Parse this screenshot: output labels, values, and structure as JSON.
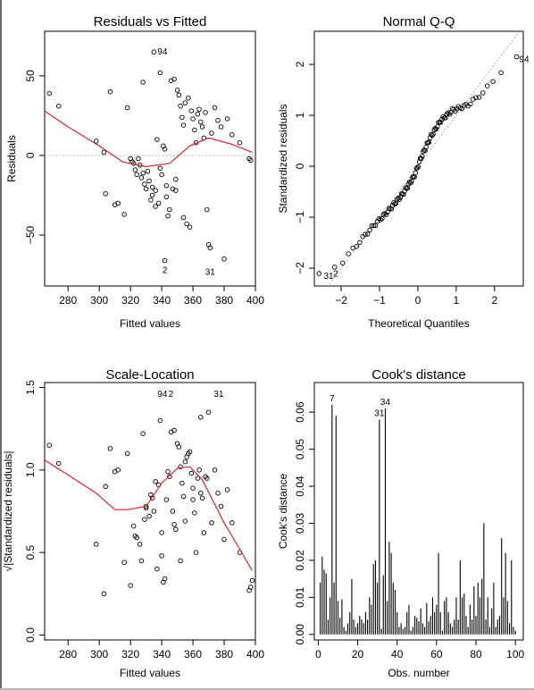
{
  "colors": {
    "smooth": "#d62728",
    "reference": "#9a9a9a",
    "ink": "#000000"
  },
  "chart_data": [
    {
      "type": "scatter",
      "title": "Residuals vs Fitted",
      "xlabel": "Fitted values",
      "ylabel": "Residuals",
      "xlim": [
        265,
        400
      ],
      "ylim": [
        -82,
        78
      ],
      "xticks": [
        280,
        300,
        320,
        340,
        360,
        380,
        400
      ],
      "yticks": [
        -50,
        0,
        50
      ],
      "reference_line": {
        "type": "horizontal",
        "y": 0,
        "style": "dotted"
      },
      "points": [
        [
          268,
          39
        ],
        [
          274,
          31
        ],
        [
          298,
          9
        ],
        [
          303,
          2
        ],
        [
          304,
          -24
        ],
        [
          307,
          40
        ],
        [
          310,
          -31
        ],
        [
          312,
          -30
        ],
        [
          316,
          -37
        ],
        [
          318,
          30
        ],
        [
          320,
          -2
        ],
        [
          322,
          -5
        ],
        [
          323,
          -9
        ],
        [
          324,
          -12
        ],
        [
          326,
          -6
        ],
        [
          327,
          -14
        ],
        [
          328,
          46
        ],
        [
          329,
          -18
        ],
        [
          330,
          -21
        ],
        [
          332,
          -16
        ],
        [
          333,
          -28
        ],
        [
          334,
          -25
        ],
        [
          335,
          65
        ],
        [
          336,
          -32
        ],
        [
          337,
          10
        ],
        [
          338,
          -30
        ],
        [
          339,
          52
        ],
        [
          340,
          -12
        ],
        [
          341,
          6
        ],
        [
          342,
          4
        ],
        [
          343,
          -26
        ],
        [
          344,
          -38
        ],
        [
          345,
          -34
        ],
        [
          346,
          47
        ],
        [
          347,
          -21
        ],
        [
          348,
          48
        ],
        [
          349,
          -15
        ],
        [
          350,
          41
        ],
        [
          351,
          38
        ],
        [
          352,
          31
        ],
        [
          353,
          24
        ],
        [
          354,
          19
        ],
        [
          355,
          33
        ],
        [
          356,
          -43
        ],
        [
          357,
          36
        ],
        [
          358,
          -45
        ],
        [
          359,
          28
        ],
        [
          360,
          23
        ],
        [
          361,
          16
        ],
        [
          362,
          8
        ],
        [
          363,
          26
        ],
        [
          364,
          29
        ],
        [
          365,
          21
        ],
        [
          366,
          18
        ],
        [
          367,
          11
        ],
        [
          368,
          27
        ],
        [
          369,
          -34
        ],
        [
          370,
          -56
        ],
        [
          372,
          14
        ],
        [
          374,
          30
        ],
        [
          376,
          22
        ],
        [
          378,
          18
        ],
        [
          380,
          -65
        ],
        [
          382,
          23
        ],
        [
          385,
          13
        ],
        [
          390,
          8
        ],
        [
          396,
          -2
        ],
        [
          397,
          -3
        ],
        [
          334,
          -20
        ],
        [
          331,
          -10
        ],
        [
          325,
          -2
        ],
        [
          339,
          -8
        ],
        [
          343,
          -19
        ],
        [
          349,
          -22
        ],
        [
          336,
          -22
        ],
        [
          328,
          -11
        ],
        [
          321,
          -4
        ],
        [
          342,
          -66
        ],
        [
          371,
          -58
        ],
        [
          354,
          -39
        ]
      ],
      "smooth": [
        [
          265,
          28
        ],
        [
          280,
          18
        ],
        [
          300,
          6
        ],
        [
          315,
          -4
        ],
        [
          330,
          -7
        ],
        [
          345,
          -5
        ],
        [
          358,
          6
        ],
        [
          370,
          11
        ],
        [
          385,
          7
        ],
        [
          398,
          2
        ]
      ],
      "annotations": [
        {
          "label": "94",
          "x": 335,
          "y": 65
        },
        {
          "label": "2",
          "x": 342,
          "y": -66
        },
        {
          "label": "31",
          "x": 371,
          "y": -67
        }
      ]
    },
    {
      "type": "scatter",
      "title": "Normal Q-Q",
      "xlabel": "Theoretical Quantiles",
      "ylabel": "Standardized residuals",
      "xlim": [
        -2.7,
        2.75
      ],
      "ylim": [
        -2.35,
        2.65
      ],
      "xticks": [
        -2,
        -1,
        0,
        1,
        2
      ],
      "yticks": [
        -2,
        -1,
        0,
        1,
        2
      ],
      "reference_line": {
        "type": "diagonal",
        "slope": 1,
        "intercept": 0,
        "style": "dotted"
      },
      "n_points": 100,
      "sample_curve": [
        [
          -2.6,
          -2.15
        ],
        [
          -2.0,
          -1.9
        ],
        [
          -1.6,
          -1.55
        ],
        [
          -1.2,
          -1.2
        ],
        [
          -0.8,
          -0.9
        ],
        [
          -0.4,
          -0.55
        ],
        [
          -0.1,
          -0.2
        ],
        [
          0.1,
          0.2
        ],
        [
          0.35,
          0.6
        ],
        [
          0.6,
          0.9
        ],
        [
          0.9,
          1.1
        ],
        [
          1.3,
          1.2
        ],
        [
          1.7,
          1.45
        ],
        [
          2.0,
          1.7
        ],
        [
          2.3,
          2.0
        ],
        [
          2.6,
          2.15
        ]
      ],
      "annotations": [
        {
          "label": "94",
          "x": 2.55,
          "y": 2.1
        },
        {
          "label": "31",
          "x": -2.55,
          "y": -2.16
        },
        {
          "label": "2",
          "x": -2.3,
          "y": -2.11
        }
      ]
    },
    {
      "type": "scatter",
      "title": "Scale-Location",
      "xlabel": "Fitted values",
      "ylabel": "√|Standardized residuals|",
      "xlim": [
        265,
        400
      ],
      "ylim": [
        -0.03,
        1.53
      ],
      "xticks": [
        280,
        300,
        320,
        340,
        360,
        380,
        400
      ],
      "yticks": [
        0.0,
        0.5,
        1.0,
        1.5
      ],
      "points": [
        [
          268,
          1.15
        ],
        [
          274,
          1.04
        ],
        [
          298,
          0.55
        ],
        [
          303,
          0.25
        ],
        [
          304,
          0.9
        ],
        [
          307,
          1.13
        ],
        [
          310,
          0.99
        ],
        [
          312,
          1.0
        ],
        [
          316,
          0.44
        ],
        [
          318,
          1.1
        ],
        [
          320,
          0.3
        ],
        [
          322,
          0.66
        ],
        [
          323,
          0.6
        ],
        [
          324,
          0.59
        ],
        [
          326,
          0.55
        ],
        [
          327,
          0.45
        ],
        [
          328,
          1.22
        ],
        [
          329,
          0.7
        ],
        [
          330,
          0.77
        ],
        [
          332,
          0.72
        ],
        [
          333,
          0.85
        ],
        [
          334,
          0.83
        ],
        [
          336,
          0.93
        ],
        [
          337,
          0.4
        ],
        [
          338,
          0.91
        ],
        [
          339,
          1.3
        ],
        [
          340,
          0.62
        ],
        [
          341,
          0.32
        ],
        [
          342,
          0.34
        ],
        [
          343,
          0.82
        ],
        [
          344,
          0.99
        ],
        [
          345,
          0.96
        ],
        [
          346,
          1.23
        ],
        [
          347,
          0.75
        ],
        [
          348,
          1.24
        ],
        [
          349,
          0.64
        ],
        [
          350,
          1.16
        ],
        [
          351,
          1.14
        ],
        [
          352,
          1.02
        ],
        [
          353,
          0.92
        ],
        [
          354,
          0.84
        ],
        [
          355,
          1.05
        ],
        [
          356,
          1.08
        ],
        [
          357,
          1.1
        ],
        [
          358,
          1.11
        ],
        [
          359,
          0.98
        ],
        [
          360,
          0.89
        ],
        [
          361,
          0.74
        ],
        [
          362,
          0.5
        ],
        [
          363,
          0.95
        ],
        [
          364,
          1.0
        ],
        [
          365,
          0.86
        ],
        [
          366,
          0.83
        ],
        [
          367,
          0.62
        ],
        [
          368,
          0.96
        ],
        [
          369,
          0.95
        ],
        [
          370,
          1.35
        ],
        [
          372,
          0.68
        ],
        [
          374,
          1.0
        ],
        [
          376,
          0.86
        ],
        [
          378,
          0.78
        ],
        [
          380,
          0.58
        ],
        [
          382,
          0.88
        ],
        [
          385,
          0.68
        ],
        [
          390,
          0.5
        ],
        [
          396,
          0.27
        ],
        [
          397,
          0.29
        ],
        [
          398,
          0.33
        ],
        [
          335,
          0.75
        ],
        [
          340,
          0.48
        ],
        [
          348,
          0.67
        ],
        [
          355,
          0.69
        ],
        [
          360,
          0.82
        ],
        [
          330,
          0.78
        ],
        [
          365,
          1.32
        ],
        [
          352,
          0.45
        ]
      ],
      "smooth": [
        [
          265,
          1.06
        ],
        [
          280,
          0.97
        ],
        [
          298,
          0.86
        ],
        [
          310,
          0.76
        ],
        [
          318,
          0.76
        ],
        [
          330,
          0.78
        ],
        [
          340,
          0.92
        ],
        [
          350,
          1.01
        ],
        [
          358,
          1.02
        ],
        [
          366,
          0.94
        ],
        [
          380,
          0.68
        ],
        [
          390,
          0.52
        ],
        [
          398,
          0.39
        ]
      ],
      "annotations": [
        {
          "label": "94",
          "x": 335,
          "y": 1.46
        },
        {
          "label": "2",
          "x": 342,
          "y": 1.46
        },
        {
          "label": "31",
          "x": 371,
          "y": 1.46
        }
      ]
    },
    {
      "type": "bar",
      "title": "Cook's distance",
      "xlabel": "Obs. number",
      "ylabel": "Cook's distance",
      "xlim": [
        -2,
        104
      ],
      "ylim": [
        -0.0015,
        0.068
      ],
      "xticks": [
        0,
        20,
        40,
        60,
        80,
        100
      ],
      "yticks": [
        0.0,
        0.01,
        0.02,
        0.03,
        0.04,
        0.05,
        0.06
      ],
      "x": [
        1,
        2,
        3,
        4,
        5,
        6,
        7,
        8,
        9,
        10,
        11,
        12,
        13,
        14,
        15,
        16,
        17,
        18,
        19,
        20,
        21,
        22,
        23,
        24,
        25,
        26,
        27,
        28,
        29,
        30,
        31,
        32,
        33,
        34,
        35,
        36,
        37,
        38,
        39,
        40,
        41,
        42,
        43,
        44,
        45,
        46,
        47,
        48,
        49,
        50,
        51,
        52,
        53,
        54,
        55,
        56,
        57,
        58,
        59,
        60,
        61,
        62,
        63,
        64,
        65,
        66,
        67,
        68,
        69,
        70,
        71,
        72,
        73,
        74,
        75,
        76,
        77,
        78,
        79,
        80,
        81,
        82,
        83,
        84,
        85,
        86,
        87,
        88,
        89,
        90,
        91,
        92,
        93,
        94,
        95,
        96,
        97,
        98,
        99,
        100
      ],
      "values": [
        0.014,
        0.021,
        0.0175,
        0.0165,
        0.004,
        0.01,
        0.062,
        0.014,
        0.059,
        0.009,
        0.0045,
        0.0095,
        0.002,
        0.001,
        0.003,
        0.006,
        0.015,
        0.004,
        0.002,
        0.003,
        0.005,
        0.004,
        0.003,
        0.006,
        0.004,
        0.01,
        0.008,
        0.019,
        0.02,
        0.014,
        0.058,
        0.0015,
        0.016,
        0.061,
        0.009,
        0.025,
        0.022,
        0.014,
        0.012,
        0.006,
        0.002,
        0.003,
        0.0015,
        0.002,
        0.006,
        0.008,
        0.001,
        0.002,
        0.005,
        0.0045,
        0.0035,
        0.007,
        0.003,
        0.002,
        0.0085,
        0.0035,
        0.005,
        0.01,
        0.006,
        0.008,
        0.022,
        0.006,
        0.001,
        0.009,
        0.01,
        0.006,
        0.003,
        0.002,
        0.004,
        0.01,
        0.004,
        0.02,
        0.01,
        0.011,
        0.005,
        0.002,
        0.008,
        0.004,
        0.013,
        0.005,
        0.014,
        0.01,
        0.015,
        0.03,
        0.004,
        0.01,
        0.002,
        0.007,
        0.014,
        0.002,
        0.004,
        0.005,
        0.026,
        0.01,
        0.022,
        0.009,
        0.003,
        0.02,
        0.002,
        0.001
      ],
      "annotations": [
        {
          "label": "7",
          "x": 7,
          "y": 0.062
        },
        {
          "label": "31",
          "x": 31,
          "y": 0.058
        },
        {
          "label": "34",
          "x": 34,
          "y": 0.061
        }
      ]
    }
  ]
}
